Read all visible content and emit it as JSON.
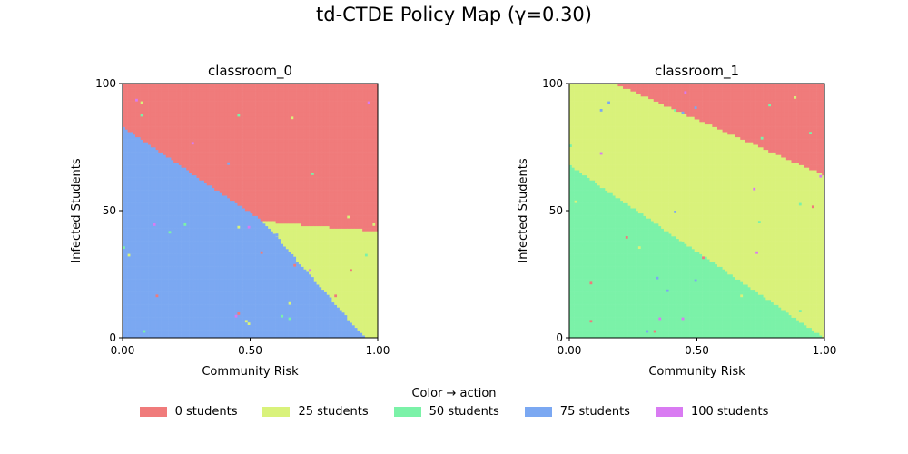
{
  "title": "td-CTDE Policy Map (γ=0.30)",
  "legend": {
    "title": "Color → action",
    "items": [
      {
        "label": "0 students",
        "color": "#f07b7b"
      },
      {
        "label": "25 students",
        "color": "#d9f27b"
      },
      {
        "label": "50 students",
        "color": "#7bf2a8"
      },
      {
        "label": "75 students",
        "color": "#7ba8f2"
      },
      {
        "label": "100 students",
        "color": "#d97bf2"
      }
    ]
  },
  "chart_data": [
    {
      "type": "heatmap",
      "title": "classroom_0",
      "xlabel": "Community Risk",
      "ylabel": "Infected Students",
      "xlim": [
        0,
        1
      ],
      "ylim": [
        0,
        100
      ],
      "xticks": [
        "0.00",
        "0.50",
        "1.00"
      ],
      "yticks": [
        "0",
        "50",
        "100"
      ],
      "actions": [
        0,
        25,
        50,
        75,
        100
      ],
      "regions": [
        {
          "action": 0,
          "description": "above boundary"
        },
        {
          "action": 25,
          "description": "lower-right wedge"
        },
        {
          "action": 75,
          "description": "lower-left"
        }
      ],
      "boundary_75_vs_0": [
        [
          0.0,
          83
        ],
        [
          0.55,
          46
        ]
      ],
      "boundary_0_vs_25": [
        [
          0.55,
          46
        ],
        [
          0.75,
          44
        ],
        [
          1.0,
          42
        ]
      ],
      "boundary_75_vs_25": [
        [
          0.55,
          46
        ],
        [
          0.95,
          0
        ]
      ]
    },
    {
      "type": "heatmap",
      "title": "classroom_1",
      "xlabel": "Community Risk",
      "ylabel": "Infected Students",
      "xlim": [
        0,
        1
      ],
      "ylim": [
        0,
        100
      ],
      "xticks": [
        "0.00",
        "0.50",
        "1.00"
      ],
      "yticks": [
        "0",
        "50",
        "100"
      ],
      "actions": [
        0,
        25,
        50,
        75,
        100
      ],
      "regions": [
        {
          "action": 0,
          "description": "upper-right"
        },
        {
          "action": 25,
          "description": "middle band"
        },
        {
          "action": 50,
          "description": "lower-left"
        }
      ],
      "boundary_25_vs_0": [
        [
          0.18,
          100
        ],
        [
          1.0,
          64
        ]
      ],
      "boundary_50_vs_25": [
        [
          0.0,
          68
        ],
        [
          1.0,
          0
        ]
      ]
    }
  ]
}
